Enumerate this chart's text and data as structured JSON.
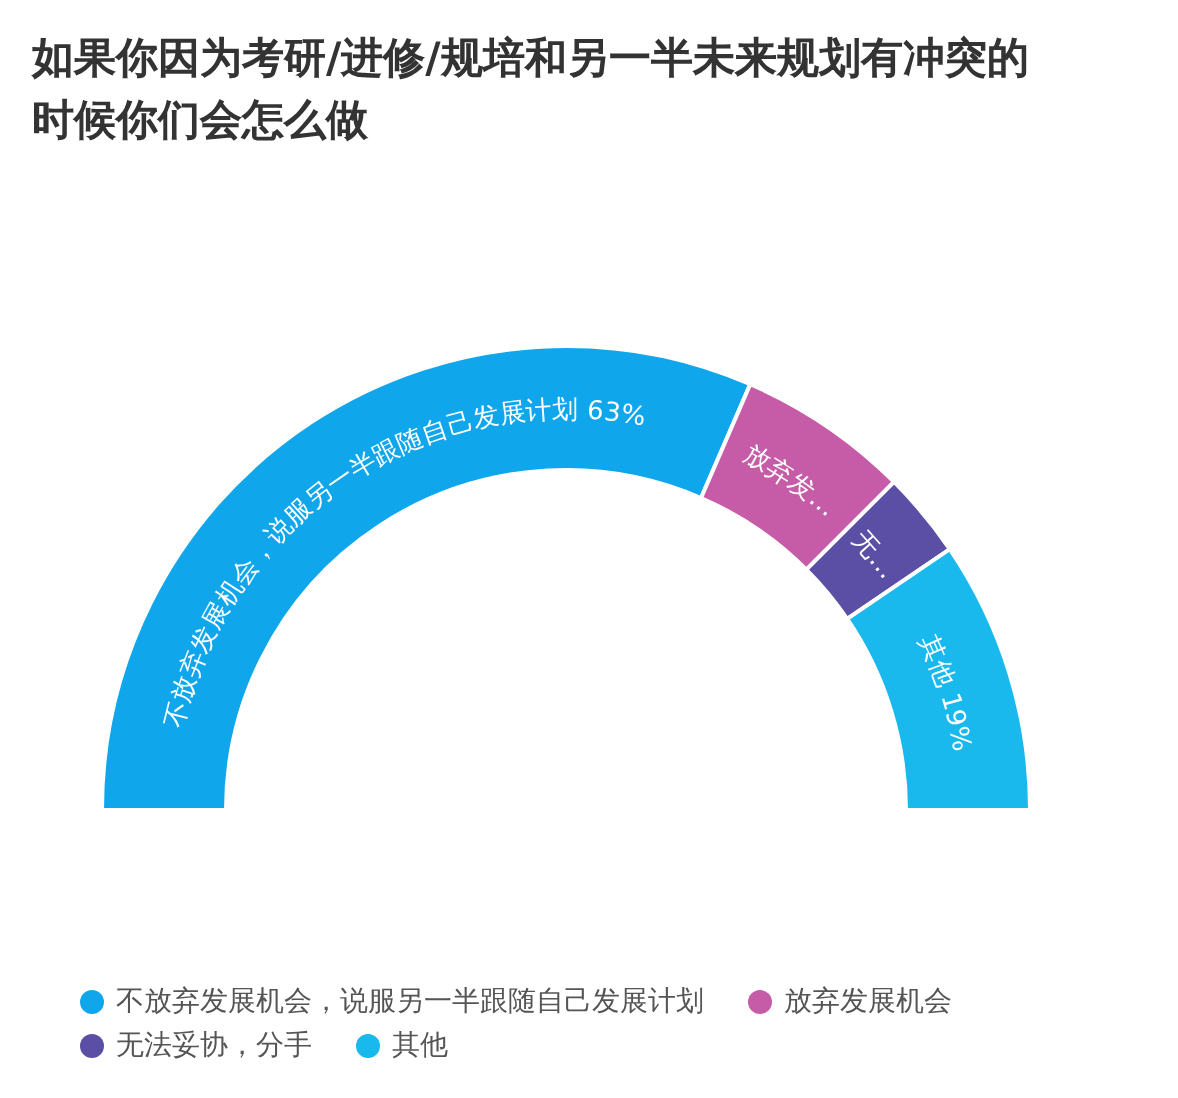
{
  "chart_data": {
    "type": "donut",
    "title": "如果你因为考研/进修/规培和另一半未来规划有冲突的时候你们会怎么做",
    "categories": [
      "不放弃发展机会，说服另一半跟随自己发展计划",
      "放弃发展机会",
      "无法妥协，分手",
      "其他"
    ],
    "values": [
      63,
      12,
      6,
      19
    ],
    "value_labels": [
      "不放弃发展机会，说服另一半跟随自己发展计划 63%",
      "放弃发…",
      "无…",
      "其他 19%"
    ],
    "colors": [
      "#10a6eb",
      "#c65ca8",
      "#5b4fa5",
      "#19b9ee"
    ],
    "legend": "bottom"
  }
}
